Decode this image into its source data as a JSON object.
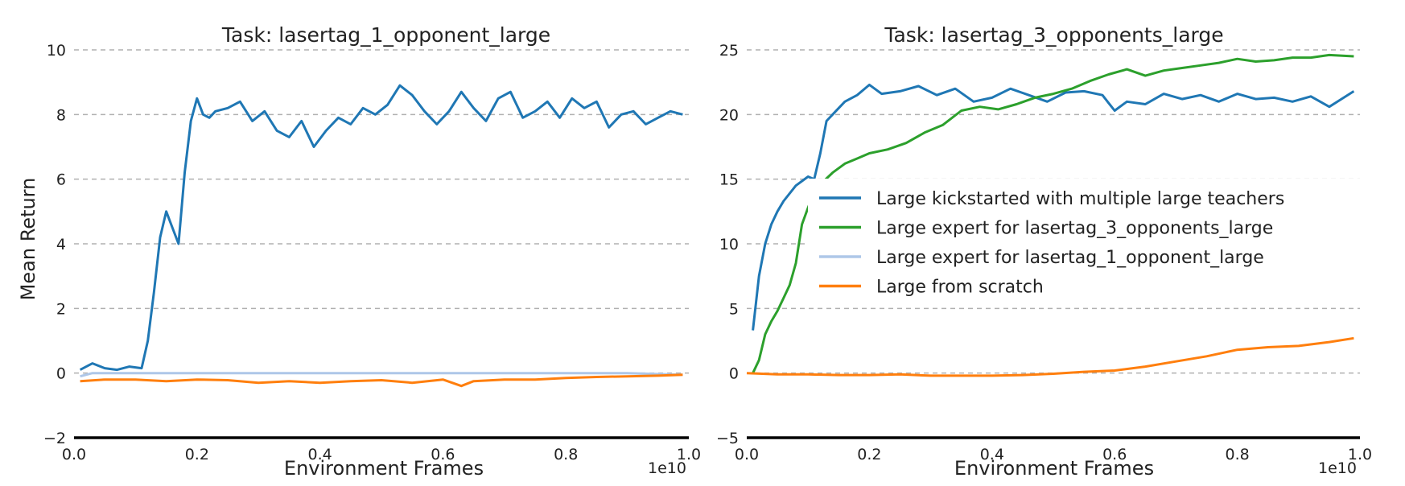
{
  "figure": {
    "ylabel": "Mean Return",
    "xlabel": "Environment Frames",
    "x_offset_text": "1e10",
    "legend": [
      {
        "label": "Large kickstarted with multiple large teachers",
        "color": "#1f77b4"
      },
      {
        "label": "Large expert for lasertag_3_opponents_large",
        "color": "#2ca02c"
      },
      {
        "label": "Large expert for lasertag_1_opponent_large",
        "color": "#aec7e8"
      },
      {
        "label": "Large from scratch",
        "color": "#ff7f0e"
      }
    ]
  },
  "chart_data": [
    {
      "type": "line",
      "title": "Task: lasertag_1_opponent_large",
      "xlabel": "Environment Frames",
      "ylabel": "Mean Return",
      "xlim": [
        0,
        1.0
      ],
      "ylim": [
        -2,
        10
      ],
      "xticks": [
        "0.0",
        "0.2",
        "0.4",
        "0.6",
        "0.8",
        "1.0"
      ],
      "yticks": [
        "−2",
        "0",
        "2",
        "4",
        "6",
        "8",
        "10"
      ],
      "grid": "horizontal dashed",
      "series": [
        {
          "name": "Large kickstarted with multiple large teachers",
          "color": "#1f77b4",
          "x": [
            0.01,
            0.03,
            0.05,
            0.07,
            0.09,
            0.11,
            0.12,
            0.13,
            0.14,
            0.15,
            0.16,
            0.17,
            0.18,
            0.19,
            0.2,
            0.21,
            0.22,
            0.23,
            0.25,
            0.27,
            0.29,
            0.31,
            0.33,
            0.35,
            0.37,
            0.39,
            0.41,
            0.43,
            0.45,
            0.47,
            0.49,
            0.51,
            0.53,
            0.55,
            0.57,
            0.59,
            0.61,
            0.63,
            0.65,
            0.67,
            0.69,
            0.71,
            0.73,
            0.75,
            0.77,
            0.79,
            0.81,
            0.83,
            0.85,
            0.87,
            0.89,
            0.91,
            0.93,
            0.95,
            0.97,
            0.99
          ],
          "y": [
            0.1,
            0.3,
            0.15,
            0.1,
            0.2,
            0.15,
            1.0,
            2.5,
            4.2,
            5.0,
            4.5,
            4.0,
            6.2,
            7.8,
            8.5,
            8.0,
            7.9,
            8.1,
            8.2,
            8.4,
            7.8,
            8.1,
            7.5,
            7.3,
            7.8,
            7.0,
            7.5,
            7.9,
            7.7,
            8.2,
            8.0,
            8.3,
            8.9,
            8.6,
            8.1,
            7.7,
            8.1,
            8.7,
            8.2,
            7.8,
            8.5,
            8.7,
            7.9,
            8.1,
            8.4,
            7.9,
            8.5,
            8.2,
            8.4,
            7.6,
            8.0,
            8.1,
            7.7,
            7.9,
            8.1,
            8.0
          ]
        },
        {
          "name": "Large expert for lasertag_1_opponent_large",
          "color": "#aec7e8",
          "x": [
            0.01,
            0.03,
            0.1,
            0.2,
            0.3,
            0.4,
            0.5,
            0.6,
            0.7,
            0.8,
            0.9,
            0.99
          ],
          "y": [
            -0.1,
            0.0,
            0.0,
            0.0,
            0.0,
            0.0,
            0.0,
            0.0,
            0.0,
            0.0,
            0.0,
            -0.05
          ]
        },
        {
          "name": "Large from scratch",
          "color": "#ff7f0e",
          "x": [
            0.01,
            0.05,
            0.1,
            0.15,
            0.2,
            0.25,
            0.3,
            0.35,
            0.4,
            0.45,
            0.5,
            0.55,
            0.6,
            0.63,
            0.65,
            0.7,
            0.75,
            0.8,
            0.85,
            0.9,
            0.95,
            0.99
          ],
          "y": [
            -0.25,
            -0.2,
            -0.2,
            -0.25,
            -0.2,
            -0.22,
            -0.3,
            -0.25,
            -0.3,
            -0.25,
            -0.22,
            -0.3,
            -0.2,
            -0.4,
            -0.25,
            -0.2,
            -0.2,
            -0.15,
            -0.12,
            -0.1,
            -0.08,
            -0.05
          ]
        }
      ]
    },
    {
      "type": "line",
      "title": "Task: lasertag_3_opponents_large",
      "xlabel": "Environment Frames",
      "ylabel": "",
      "xlim": [
        0,
        1.0
      ],
      "ylim": [
        -5,
        25
      ],
      "xticks": [
        "0.0",
        "0.2",
        "0.4",
        "0.6",
        "0.8",
        "1.0"
      ],
      "yticks": [
        "−5",
        "0",
        "5",
        "10",
        "15",
        "20",
        "25"
      ],
      "grid": "horizontal dashed",
      "legend_position": "center-right",
      "series": [
        {
          "name": "Large kickstarted with multiple large teachers",
          "color": "#1f77b4",
          "x": [
            0.01,
            0.02,
            0.03,
            0.04,
            0.05,
            0.06,
            0.08,
            0.1,
            0.11,
            0.12,
            0.13,
            0.14,
            0.15,
            0.16,
            0.18,
            0.2,
            0.22,
            0.25,
            0.28,
            0.31,
            0.34,
            0.37,
            0.4,
            0.43,
            0.46,
            0.49,
            0.52,
            0.55,
            0.58,
            0.59,
            0.6,
            0.62,
            0.65,
            0.68,
            0.71,
            0.74,
            0.77,
            0.8,
            0.83,
            0.86,
            0.89,
            0.92,
            0.95,
            0.99
          ],
          "y": [
            3.3,
            7.5,
            10.0,
            11.5,
            12.5,
            13.3,
            14.5,
            15.2,
            15.0,
            17.0,
            19.5,
            20.0,
            20.5,
            21.0,
            21.5,
            22.3,
            21.6,
            21.8,
            22.2,
            21.5,
            22.0,
            21.0,
            21.3,
            22.0,
            21.5,
            21.0,
            21.7,
            21.8,
            21.5,
            20.9,
            20.3,
            21.0,
            20.8,
            21.6,
            21.2,
            21.5,
            21.0,
            21.6,
            21.2,
            21.3,
            21.0,
            21.4,
            20.6,
            21.8
          ]
        },
        {
          "name": "Large expert for lasertag_3_opponents_large",
          "color": "#2ca02c",
          "x": [
            0.01,
            0.02,
            0.03,
            0.04,
            0.05,
            0.06,
            0.07,
            0.08,
            0.09,
            0.1,
            0.105,
            0.12,
            0.14,
            0.16,
            0.18,
            0.2,
            0.23,
            0.26,
            0.29,
            0.32,
            0.35,
            0.38,
            0.41,
            0.44,
            0.47,
            0.5,
            0.53,
            0.56,
            0.59,
            0.62,
            0.65,
            0.68,
            0.71,
            0.74,
            0.77,
            0.8,
            0.83,
            0.86,
            0.89,
            0.92,
            0.95,
            0.99
          ],
          "y": [
            0.0,
            1.0,
            3.0,
            4.0,
            4.8,
            5.8,
            6.8,
            8.5,
            11.5,
            12.8,
            13.4,
            14.6,
            15.5,
            16.2,
            16.6,
            17.0,
            17.3,
            17.8,
            18.6,
            19.2,
            20.3,
            20.6,
            20.4,
            20.8,
            21.3,
            21.6,
            22.0,
            22.6,
            23.1,
            23.5,
            23.0,
            23.4,
            23.6,
            23.8,
            24.0,
            24.3,
            24.1,
            24.2,
            24.4,
            24.4,
            24.6,
            24.5
          ]
        },
        {
          "name": "Large from scratch",
          "color": "#ff7f0e",
          "x": [
            0.0,
            0.05,
            0.1,
            0.15,
            0.2,
            0.25,
            0.3,
            0.35,
            0.4,
            0.45,
            0.5,
            0.55,
            0.6,
            0.65,
            0.7,
            0.75,
            0.8,
            0.85,
            0.9,
            0.95,
            0.99
          ],
          "y": [
            0.0,
            -0.1,
            -0.1,
            -0.15,
            -0.15,
            -0.1,
            -0.2,
            -0.2,
            -0.2,
            -0.15,
            -0.05,
            0.1,
            0.2,
            0.5,
            0.9,
            1.3,
            1.8,
            2.0,
            2.1,
            2.4,
            2.7
          ]
        }
      ]
    }
  ]
}
